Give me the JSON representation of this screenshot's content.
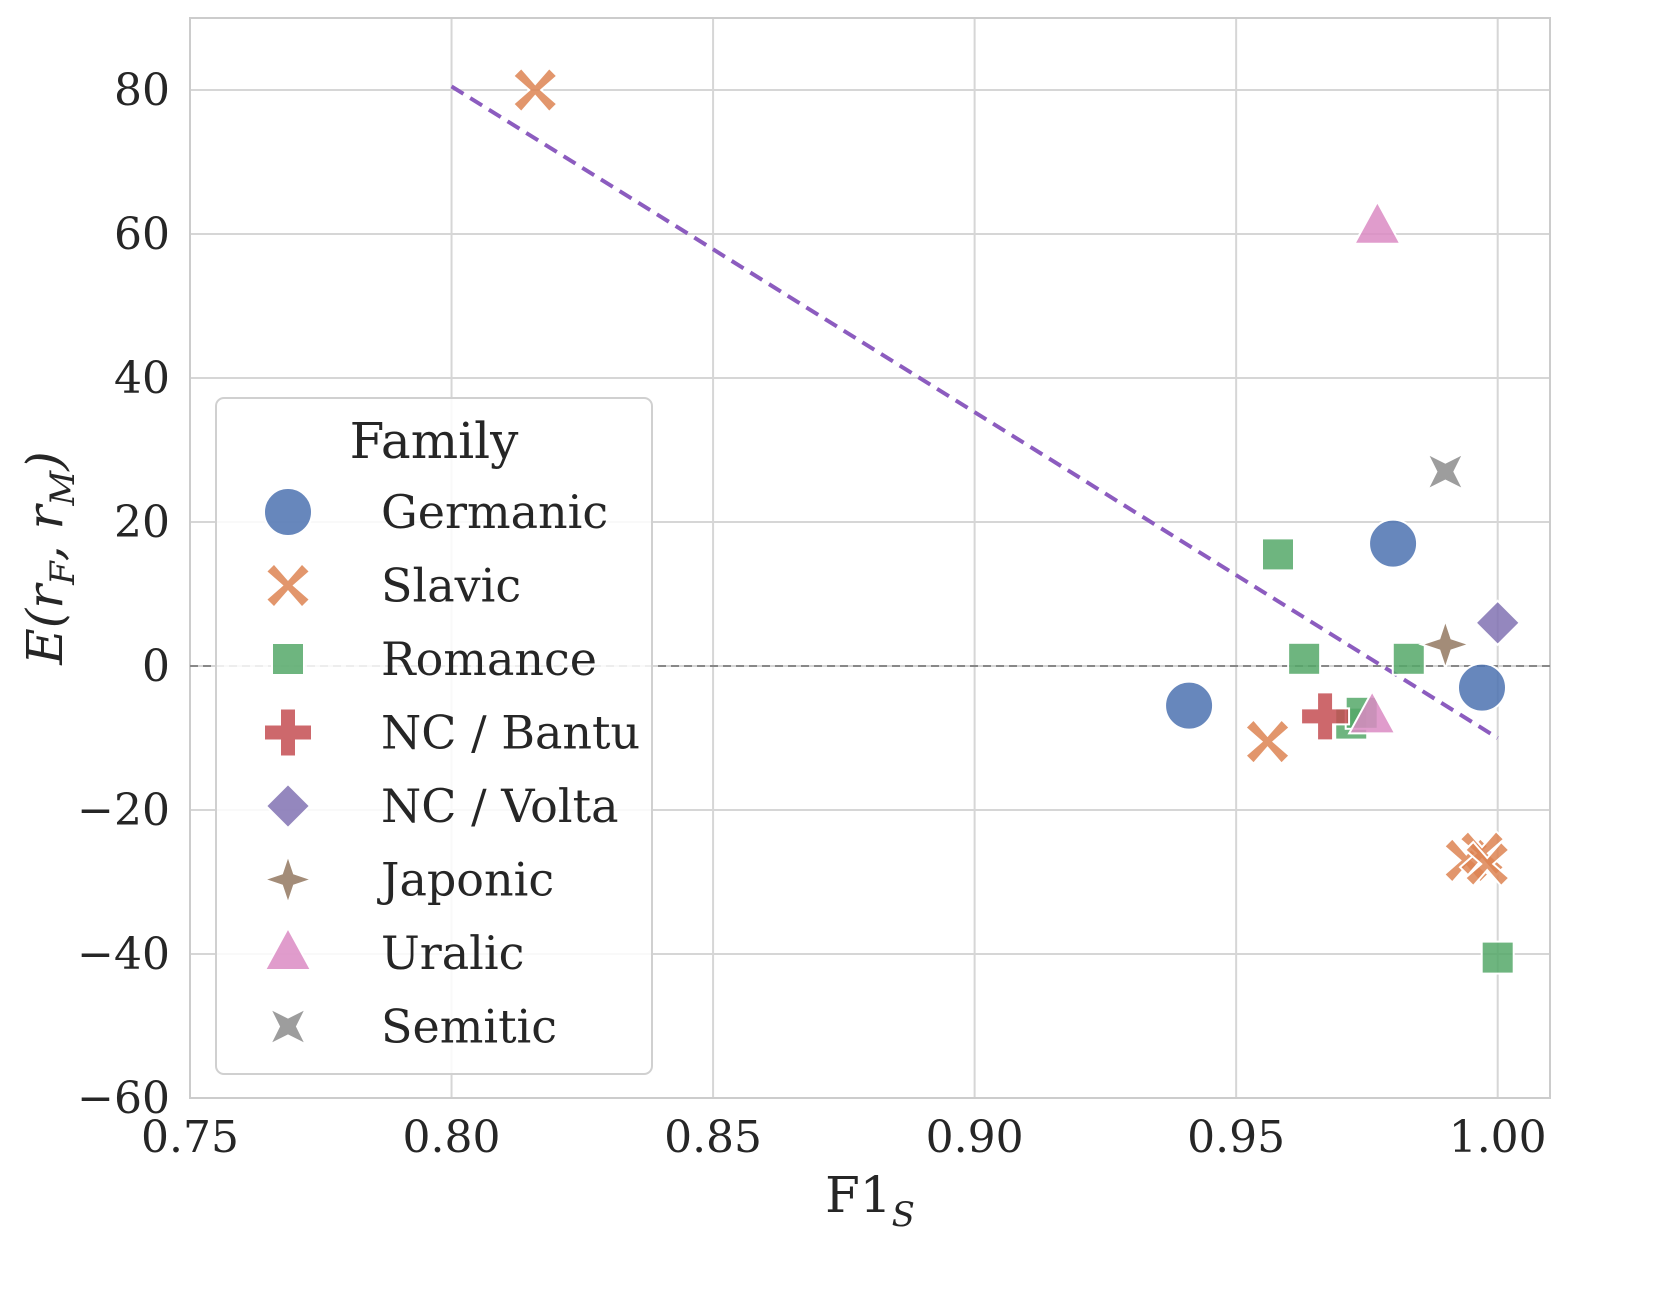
{
  "chart_data": {
    "type": "scatter",
    "title": "",
    "xlabel": "F1",
    "xlabel_sub": "S",
    "ylabel_parts": [
      "E(r",
      "F",
      ", r",
      "M",
      ")"
    ],
    "xlim": [
      0.75,
      1.01
    ],
    "ylim": [
      -60,
      90
    ],
    "xticks": [
      0.75,
      0.8,
      0.85,
      0.9,
      0.95,
      1.0
    ],
    "xtick_labels": [
      "0.75",
      "0.80",
      "0.85",
      "0.90",
      "0.95",
      "1.00"
    ],
    "yticks": [
      -60,
      -40,
      -20,
      0,
      20,
      40,
      60,
      80
    ],
    "ytick_labels": [
      "−60",
      "−40",
      "−20",
      "0",
      "20",
      "40",
      "60",
      "80"
    ],
    "grid": true,
    "legend": {
      "title": "Family",
      "position": "center-left"
    },
    "series": [
      {
        "name": "Germanic",
        "marker": "circle",
        "color": "#4c72b0",
        "points": [
          {
            "x": 0.941,
            "y": -5.5
          },
          {
            "x": 0.98,
            "y": 17
          },
          {
            "x": 0.997,
            "y": -3
          }
        ]
      },
      {
        "name": "Slavic",
        "marker": "x",
        "color": "#dd8452",
        "points": [
          {
            "x": 0.816,
            "y": 80
          },
          {
            "x": 0.956,
            "y": -10.5
          },
          {
            "x": 0.994,
            "y": -27
          },
          {
            "x": 0.997,
            "y": -26
          },
          {
            "x": 0.998,
            "y": -27.5
          }
        ]
      },
      {
        "name": "Romance",
        "marker": "square",
        "color": "#55a868",
        "points": [
          {
            "x": 0.958,
            "y": 15.5
          },
          {
            "x": 0.963,
            "y": 1
          },
          {
            "x": 0.972,
            "y": -8
          },
          {
            "x": 0.974,
            "y": -6.5
          },
          {
            "x": 0.983,
            "y": 1
          },
          {
            "x": 1.0,
            "y": -40.5
          }
        ]
      },
      {
        "name": "NC / Bantu",
        "marker": "plus",
        "color": "#c44e52",
        "points": [
          {
            "x": 0.967,
            "y": -7
          }
        ]
      },
      {
        "name": "NC / Volta",
        "marker": "diamond",
        "color": "#8172b3",
        "points": [
          {
            "x": 1.0,
            "y": 6
          }
        ]
      },
      {
        "name": "Japonic",
        "marker": "star4",
        "color": "#937860",
        "points": [
          {
            "x": 0.99,
            "y": 3
          }
        ]
      },
      {
        "name": "Uralic",
        "marker": "triangle",
        "color": "#da8bc3",
        "points": [
          {
            "x": 0.977,
            "y": 61
          },
          {
            "x": 0.976,
            "y": -7
          }
        ]
      },
      {
        "name": "Semitic",
        "marker": "star4concave",
        "color": "#8c8c8c",
        "points": [
          {
            "x": 0.99,
            "y": 27
          }
        ]
      }
    ],
    "trend_line": {
      "style": "dashed",
      "color": "#8c5cbf",
      "x": [
        0.8,
        1.0
      ],
      "y": [
        80.5,
        -10
      ]
    },
    "reference_line": {
      "style": "dashed",
      "color": "#888888",
      "y": 0
    }
  }
}
